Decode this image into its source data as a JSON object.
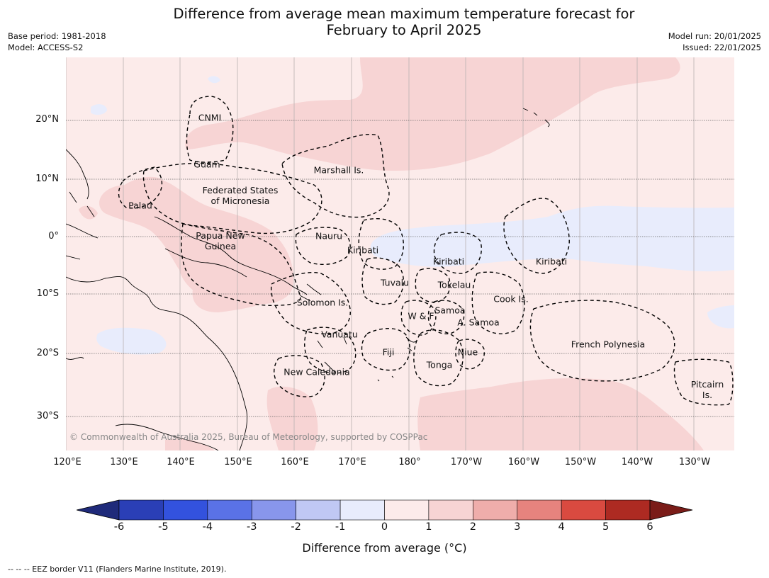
{
  "header": {
    "title_line1": "Difference from average mean maximum temperature forecast for",
    "title_line2": "February to April 2025",
    "base_period": "Base period: 1981-2018",
    "model": "Model: ACCESS-S2",
    "model_run": "Model run: 20/01/2025",
    "issued": "Issued: 22/01/2025"
  },
  "map": {
    "lat_labels": [
      "20°N",
      "10°N",
      "0°",
      "10°S",
      "20°S",
      "30°S"
    ],
    "lon_labels": [
      "120°E",
      "130°E",
      "140°E",
      "150°E",
      "160°E",
      "170°E",
      "180°",
      "170°W",
      "160°W",
      "150°W",
      "140°W",
      "130°W"
    ],
    "regions": [
      {
        "label": "CNMI"
      },
      {
        "label": "Guam"
      },
      {
        "label": "Marshall Is."
      },
      {
        "label": "Federated States\nof Micronesia"
      },
      {
        "label": "Palau"
      },
      {
        "label": "Papua New\nGuinea"
      },
      {
        "label": "Nauru"
      },
      {
        "label": "Kiribati"
      },
      {
        "label": "Kiribati"
      },
      {
        "label": "Kiribati"
      },
      {
        "label": "Tuvalu"
      },
      {
        "label": "Tokelau"
      },
      {
        "label": "Solomon Is."
      },
      {
        "label": "Cook Is."
      },
      {
        "label": "W & F"
      },
      {
        "label": "Samoa"
      },
      {
        "label": "A. Samoa"
      },
      {
        "label": "Vanuatu"
      },
      {
        "label": "Fiji"
      },
      {
        "label": "Niue"
      },
      {
        "label": "French Polynesia"
      },
      {
        "label": "Tonga"
      },
      {
        "label": "New Caledonia"
      },
      {
        "label": "Pitcairn\nIs."
      }
    ],
    "copyright": "© Commonwealth of Australia 2025, Bureau of Meteorology, supported by COSPPac"
  },
  "colorbar": {
    "ticks": [
      "-6",
      "-5",
      "-4",
      "-3",
      "-2",
      "-1",
      "0",
      "1",
      "2",
      "3",
      "4",
      "5",
      "6"
    ],
    "colors": [
      "#2a3fb6",
      "#3352de",
      "#5a72e6",
      "#8896ec",
      "#c0c8f4",
      "#e8ecfc",
      "#fcebea",
      "#f7d4d4",
      "#efadab",
      "#e6837e",
      "#d94a40",
      "#ad2a22"
    ],
    "under_color": "#1f2a7a",
    "over_color": "#7a1c18",
    "label": "Difference from average (°C)"
  },
  "footnote": "--  --  -- EEZ border V11 (Flanders Marine Institute, 2019)."
}
